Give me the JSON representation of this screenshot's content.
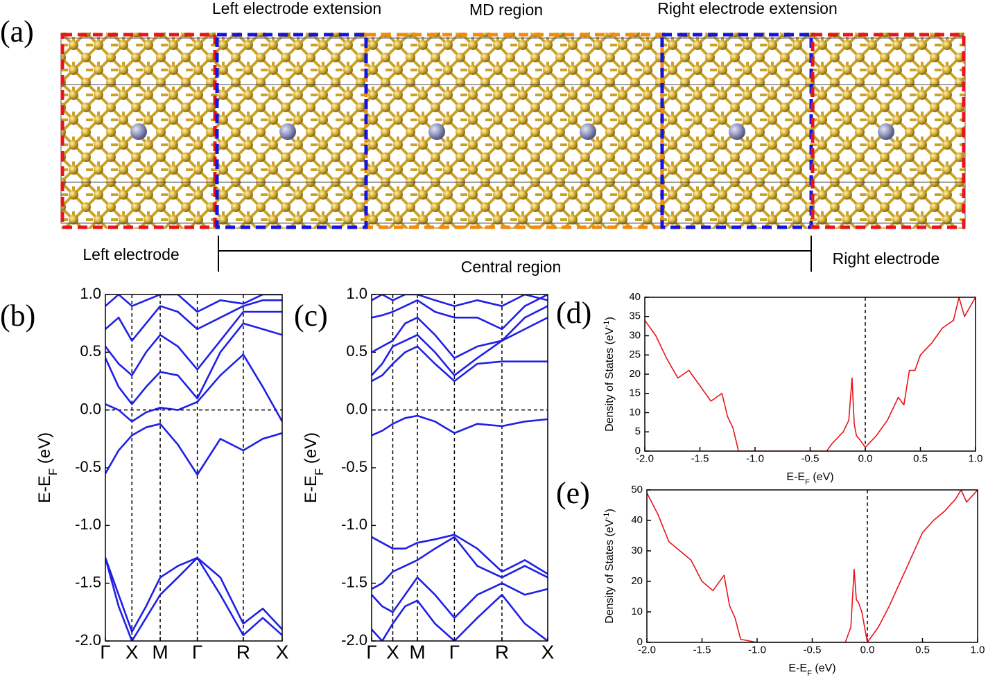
{
  "structure": {
    "label": "(a)",
    "top_labels": [
      "Left electrode extension",
      "MD region",
      "Right electrode extension"
    ],
    "bottom_labels": [
      "Left electrode",
      "Central region",
      "Right electrode"
    ]
  },
  "chart_data": [
    {
      "type": "line",
      "label": "(b)",
      "ylabel": [
        "E-E",
        "F",
        " (eV)"
      ],
      "color": "#1f1fe6",
      "xlim": [
        0,
        1
      ],
      "ylim": [
        -2,
        1
      ],
      "xticks": [
        {
          "value": 0,
          "label": "Γ"
        },
        {
          "value": 0.15,
          "label": "X"
        },
        {
          "value": 0.31,
          "label": "M"
        },
        {
          "value": 0.52,
          "label": "Γ"
        },
        {
          "value": 0.78,
          "label": "R"
        },
        {
          "value": 1,
          "label": "X"
        }
      ],
      "yticks": [
        {
          "value": 1,
          "label": "1.0"
        },
        0.5,
        {
          "value": 0,
          "label": "0.0"
        },
        -0.5,
        {
          "value": -1,
          "label": "-1.0"
        },
        -1.5,
        {
          "value": -2,
          "label": "-2.0"
        }
      ],
      "x": [
        0,
        0.075,
        0.15,
        0.23,
        0.31,
        0.41,
        0.52,
        0.65,
        0.78,
        0.89,
        1
      ],
      "series": [
        {
          "values": [
            -1.28,
            -1.6,
            -1.92,
            -1.7,
            -1.45,
            -1.35,
            -1.28,
            -1.45,
            -1.85,
            -1.72,
            -1.9
          ]
        },
        {
          "values": [
            -1.28,
            -1.7,
            -2.0,
            -1.8,
            -1.6,
            -1.45,
            -1.28,
            -1.6,
            -1.95,
            -1.8,
            -1.95
          ]
        },
        {
          "values": [
            -0.55,
            -0.35,
            -0.22,
            -0.15,
            -0.12,
            -0.3,
            -0.56,
            -0.25,
            -0.35,
            -0.25,
            -0.2
          ]
        },
        {
          "values": [
            0.05,
            0.0,
            -0.1,
            -0.02,
            0.02,
            0.0,
            0.07,
            0.3,
            0.48,
            0.2,
            -0.1
          ]
        },
        {
          "values": [
            0.45,
            0.2,
            0.05,
            0.2,
            0.33,
            0.3,
            0.1,
            0.5,
            0.75,
            0.7,
            0.65
          ]
        },
        {
          "values": [
            0.55,
            0.4,
            0.3,
            0.5,
            0.65,
            0.55,
            0.35,
            0.6,
            0.85,
            0.85,
            0.85
          ]
        },
        {
          "values": [
            0.7,
            0.8,
            0.6,
            0.75,
            0.9,
            0.85,
            0.7,
            0.8,
            0.9,
            0.95,
            0.95
          ]
        },
        {
          "values": [
            0.9,
            1.0,
            0.9,
            0.95,
            1.0,
            1.0,
            0.85,
            0.95,
            0.92,
            1.0,
            1.0
          ]
        }
      ]
    },
    {
      "type": "line",
      "label": "(c)",
      "ylabel": [
        "E-E",
        "F",
        " (eV)"
      ],
      "color": "#1f1fe6",
      "xlim": [
        0,
        1
      ],
      "ylim": [
        -2,
        1
      ],
      "xticks": [
        {
          "value": 0,
          "label": "Γ"
        },
        {
          "value": 0.12,
          "label": "X"
        },
        {
          "value": 0.26,
          "label": "M"
        },
        {
          "value": 0.47,
          "label": "Γ"
        },
        {
          "value": 0.74,
          "label": "R"
        },
        {
          "value": 1,
          "label": "X"
        }
      ],
      "yticks": [
        {
          "value": 1,
          "label": "1.0"
        },
        0.5,
        {
          "value": 0,
          "label": "0.0"
        },
        -0.5,
        {
          "value": -1,
          "label": "-1.0"
        },
        -1.5,
        {
          "value": -2,
          "label": "-2.0"
        }
      ],
      "x": [
        0,
        0.06,
        0.12,
        0.19,
        0.26,
        0.36,
        0.47,
        0.6,
        0.74,
        0.87,
        1
      ],
      "series": [
        {
          "values": [
            -1.1,
            -1.15,
            -1.2,
            -1.2,
            -1.15,
            -1.12,
            -1.08,
            -1.2,
            -1.4,
            -1.3,
            -1.42
          ]
        },
        {
          "values": [
            -1.55,
            -1.5,
            -1.4,
            -1.35,
            -1.3,
            -1.2,
            -1.1,
            -1.35,
            -1.45,
            -1.35,
            -1.45
          ]
        },
        {
          "values": [
            -1.6,
            -1.7,
            -1.75,
            -1.6,
            -1.45,
            -1.6,
            -1.8,
            -1.6,
            -1.5,
            -1.6,
            -1.55
          ]
        },
        {
          "values": [
            -1.9,
            -2.0,
            -1.85,
            -1.7,
            -1.65,
            -1.85,
            -2.0,
            -1.8,
            -1.6,
            -1.85,
            -2.0
          ]
        },
        {
          "values": [
            -0.22,
            -0.18,
            -0.12,
            -0.07,
            -0.05,
            -0.1,
            -0.2,
            -0.12,
            -0.14,
            -0.1,
            -0.08
          ]
        },
        {
          "values": [
            0.25,
            0.3,
            0.4,
            0.5,
            0.55,
            0.4,
            0.25,
            0.4,
            0.42,
            0.42,
            0.42
          ]
        },
        {
          "values": [
            0.3,
            0.4,
            0.55,
            0.6,
            0.65,
            0.5,
            0.3,
            0.45,
            0.6,
            0.7,
            0.8
          ]
        },
        {
          "values": [
            0.5,
            0.55,
            0.6,
            0.75,
            0.8,
            0.65,
            0.45,
            0.55,
            0.6,
            0.8,
            0.9
          ]
        },
        {
          "values": [
            0.8,
            0.82,
            0.85,
            0.9,
            0.95,
            0.85,
            0.8,
            0.8,
            0.7,
            0.9,
            1.0
          ]
        },
        {
          "values": [
            0.95,
            1.0,
            0.95,
            1.0,
            1.0,
            0.95,
            0.9,
            0.95,
            0.9,
            1.0,
            0.95
          ]
        }
      ]
    },
    {
      "type": "line",
      "label": "(d)",
      "ylabel": [
        "Density of States (eV",
        "-1",
        ")"
      ],
      "xlabel": [
        "E-E",
        "F",
        " (eV)"
      ],
      "color": "#e8141b",
      "xlim": [
        -2,
        1
      ],
      "ylim": [
        0,
        40
      ],
      "xticks": [
        {
          "value": -2,
          "label": "-2.0"
        },
        -1.5,
        {
          "value": -1,
          "label": "-1.0"
        },
        -0.5,
        {
          "value": 0,
          "label": "0.0"
        },
        0.5,
        {
          "value": 1,
          "label": "1.0"
        }
      ],
      "yticks": [
        0,
        5,
        10,
        15,
        20,
        25,
        30,
        35,
        40
      ],
      "x": [
        -2.0,
        -1.9,
        -1.8,
        -1.7,
        -1.6,
        -1.5,
        -1.4,
        -1.3,
        -1.25,
        -1.2,
        -1.15,
        -1.0,
        -0.5,
        -0.35,
        -0.3,
        -0.2,
        -0.15,
        -0.12,
        -0.1,
        -0.08,
        -0.05,
        0.0,
        0.1,
        0.2,
        0.3,
        0.35,
        0.4,
        0.45,
        0.5,
        0.6,
        0.7,
        0.8,
        0.85,
        0.9,
        1.0
      ],
      "series": [
        {
          "values": [
            34,
            30,
            24,
            19,
            21,
            17,
            13,
            15,
            9,
            6,
            0,
            0,
            0,
            0,
            2,
            5,
            8,
            19,
            7,
            4,
            3,
            1,
            4,
            8,
            14,
            12,
            21,
            21,
            25,
            28,
            32,
            34,
            40,
            35,
            40
          ]
        }
      ]
    },
    {
      "type": "line",
      "label": "(e)",
      "ylabel": [
        "Density of States (eV",
        "-1",
        ")"
      ],
      "xlabel": [
        "E-E",
        "F",
        " (eV)"
      ],
      "color": "#e8141b",
      "xlim": [
        -2,
        1
      ],
      "ylim": [
        0,
        50
      ],
      "xticks": [
        {
          "value": -2,
          "label": "-2.0"
        },
        -1.5,
        {
          "value": -1,
          "label": "-1.0"
        },
        -0.5,
        {
          "value": 0,
          "label": "0.0"
        },
        0.5,
        {
          "value": 1,
          "label": "1.0"
        }
      ],
      "yticks": [
        0,
        10,
        20,
        30,
        40,
        50
      ],
      "x": [
        -2.0,
        -1.9,
        -1.8,
        -1.7,
        -1.6,
        -1.5,
        -1.4,
        -1.3,
        -1.25,
        -1.2,
        -1.15,
        -1.0,
        -0.5,
        -0.35,
        -0.3,
        -0.2,
        -0.15,
        -0.12,
        -0.1,
        -0.08,
        -0.05,
        0.0,
        0.1,
        0.2,
        0.3,
        0.35,
        0.4,
        0.45,
        0.5,
        0.6,
        0.7,
        0.8,
        0.85,
        0.9,
        1.0
      ],
      "series": [
        {
          "values": [
            49,
            42,
            33,
            30,
            27,
            20,
            17,
            22,
            12,
            8,
            1,
            0,
            0,
            0,
            0,
            0,
            5,
            24,
            14,
            13,
            10,
            0,
            5,
            12,
            20,
            24,
            28,
            32,
            36,
            40,
            43,
            47,
            50,
            46,
            50
          ]
        }
      ]
    }
  ]
}
